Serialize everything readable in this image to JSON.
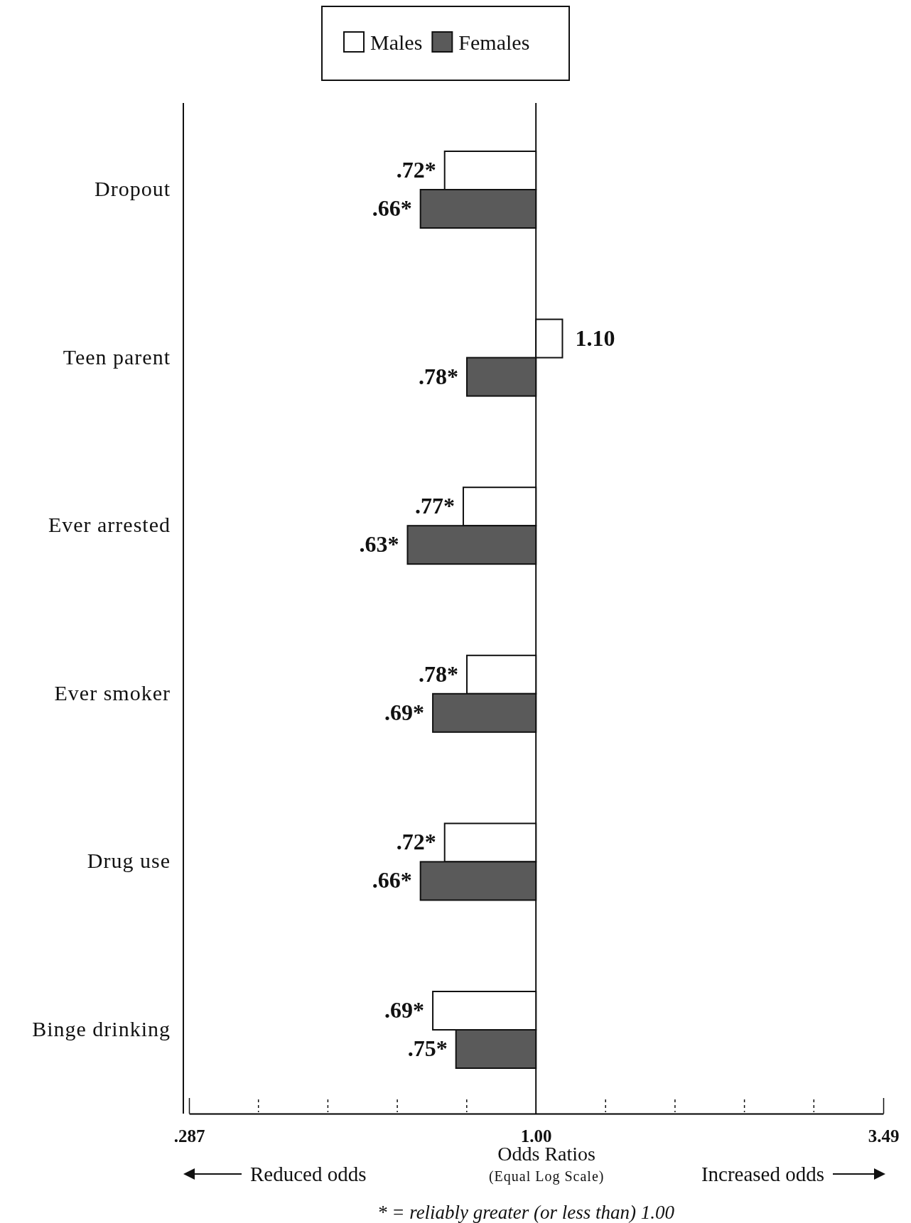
{
  "chart_data": {
    "type": "bar",
    "orientation": "horizontal",
    "log": "x",
    "xlabel": "Odds Ratios",
    "categories": [
      "Dropout",
      "Teen parent",
      "Ever arrested",
      "Ever smoker",
      "Drug use",
      "Binge drinking"
    ],
    "series": [
      {
        "name": "Males",
        "color": "#ffffff",
        "base": [
          1,
          1,
          1,
          1,
          1,
          1
        ],
        "values": [
          -0.28,
          0.1,
          -0.23,
          -0.22,
          -0.28,
          -0.31
        ],
        "value_labels": [
          ".72*",
          "1.10",
          ".77*",
          ".78*",
          ".72*",
          ".69*"
        ]
      },
      {
        "name": "Females",
        "color": "#5a5a5a",
        "base": [
          1,
          1,
          1,
          1,
          1,
          1
        ],
        "values": [
          -0.34,
          -0.22,
          -0.37,
          -0.31,
          -0.34,
          -0.25
        ],
        "value_labels": [
          ".66*",
          ".78*",
          ".63*",
          ".69*",
          ".66*",
          ".75*"
        ]
      }
    ],
    "xlim": [
      0.287,
      3.49
    ],
    "xticks": [
      {
        "value": 0.287,
        "label": ".287"
      },
      {
        "value": 1,
        "label": "1.00"
      },
      {
        "value": 3.49,
        "label": "3.49"
      }
    ],
    "ref_lines": [
      {
        "axis": "x",
        "value": 1
      }
    ],
    "legend": "top",
    "annotations": [
      "Reduced odds",
      "(Equal Log Scale)",
      "Increased odds",
      "* = reliably greater (or less than) 1.00"
    ]
  }
}
